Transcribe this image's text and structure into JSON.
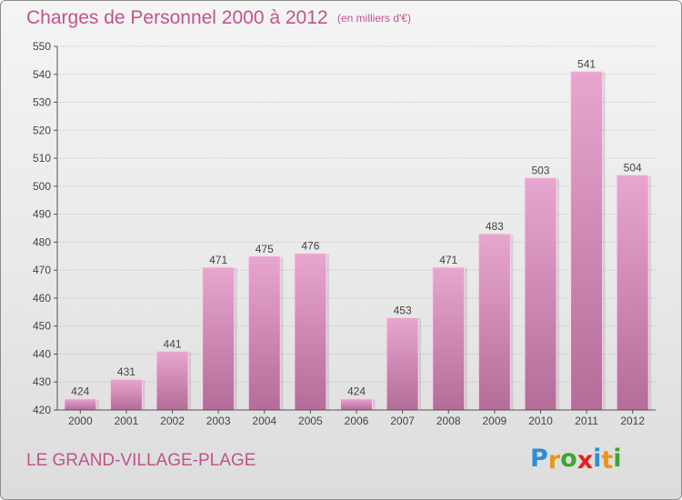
{
  "title": "Charges de Personnel 2000 à 2012",
  "subtitle": "(en milliers d'€)",
  "place": "LE GRAND-VILLAGE-PLAGE",
  "logo": {
    "letters": [
      "P",
      "r",
      "o",
      "x",
      "i",
      "t",
      "i"
    ],
    "colors": [
      "#2a8fd6",
      "#e8951c",
      "#3aa635",
      "#e2231a",
      "#2a8fd6",
      "#e8951c",
      "#3aa635"
    ]
  },
  "colors": {
    "bar_top": "#e8a6cf",
    "bar_bottom": "#b36d98",
    "text": "#c0548c",
    "grid": "#b8b8b8",
    "axis": "#555555"
  },
  "chart_data": {
    "type": "bar",
    "categories": [
      "2000",
      "2001",
      "2002",
      "2003",
      "2004",
      "2005",
      "2006",
      "2007",
      "2008",
      "2009",
      "2010",
      "2011",
      "2012"
    ],
    "values": [
      424,
      431,
      441,
      471,
      475,
      476,
      424,
      453,
      471,
      483,
      503,
      541,
      504
    ],
    "yticks": [
      420,
      430,
      440,
      450,
      460,
      470,
      480,
      490,
      500,
      510,
      520,
      530,
      540,
      550
    ],
    "ylim": [
      420,
      550
    ],
    "grid": true,
    "title": "Charges de Personnel 2000 à 2012",
    "xlabel": "",
    "ylabel": ""
  }
}
